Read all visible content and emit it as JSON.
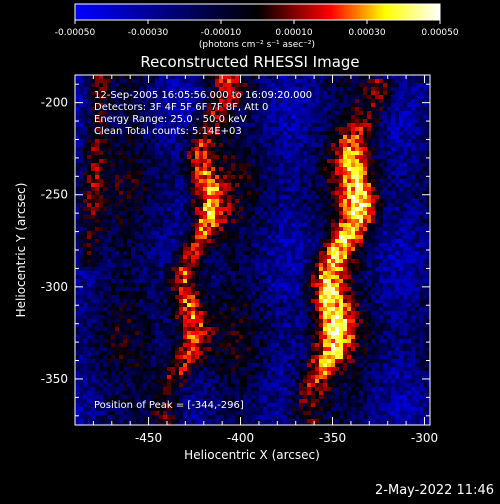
{
  "chart_data": {
    "type": "heatmap",
    "title": "Reconstructed RHESSI Image",
    "xlabel": "Heliocentric X (arcsec)",
    "ylabel": "Heliocentric Y (arcsec)",
    "xlim": [
      -490,
      -297
    ],
    "ylim": [
      -375,
      -185
    ],
    "x_ticks": [
      {
        "value": -450,
        "label": "-450"
      },
      {
        "value": -400,
        "label": "-400"
      },
      {
        "value": -350,
        "label": "-350"
      },
      {
        "value": -300,
        "label": "-300"
      }
    ],
    "y_ticks": [
      {
        "value": -200,
        "label": "-200"
      },
      {
        "value": -250,
        "label": "-250"
      },
      {
        "value": -300,
        "label": "-300"
      },
      {
        "value": -350,
        "label": "-350"
      }
    ],
    "colorbar": {
      "range": [
        -0.0005,
        0.0005
      ],
      "units": "(photons cm⁻² s⁻¹ asec⁻²)",
      "ticks": [
        {
          "value": -0.0005,
          "label": "-0.00050"
        },
        {
          "value": -0.0003,
          "label": "-0.00030"
        },
        {
          "value": -0.0001,
          "label": "-0.00010"
        },
        {
          "value": 0.0001,
          "label": "0.00010"
        },
        {
          "value": 0.0003,
          "label": "0.00030"
        },
        {
          "value": 0.0005,
          "label": "0.00050"
        }
      ],
      "colors": [
        "#0000ff",
        "#000000",
        "#ff0000",
        "#ffff00",
        "#ffffff"
      ]
    },
    "annotations": [
      "12-Sep-2005 16:05:56.000 to 16:09:20.000",
      "Detectors: 3F 4F 5F 6F 7F 8F, Att 0",
      "Energy Range: 25.0 - 50.0 keV",
      "Clean    Total counts: 5.14E+03"
    ],
    "peak_label": "Position of Peak = [-344,-296]",
    "peak": {
      "x": -344,
      "y": -296
    },
    "sources": [
      {
        "x0": -437,
        "y0": -375,
        "x1": -414,
        "y1": -200,
        "width": 9,
        "amplitude": 0.00048
      },
      {
        "x0": -362,
        "y0": -375,
        "x1": -331,
        "y1": -205,
        "width": 10,
        "amplitude": 0.0005
      }
    ]
  },
  "footer": {
    "timestamp": "2-May-2022 11:46"
  }
}
